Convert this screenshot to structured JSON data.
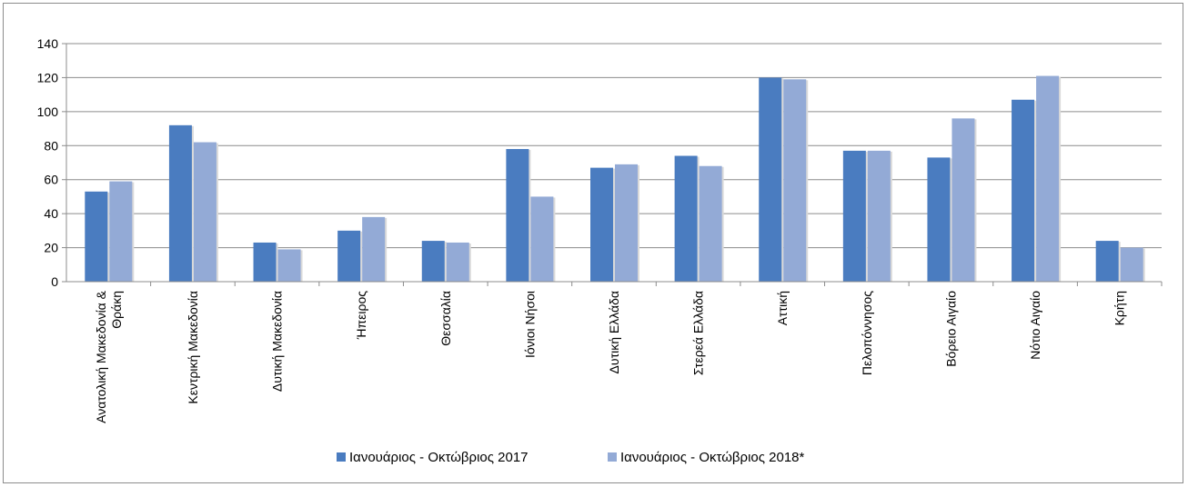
{
  "chart_data": {
    "type": "bar",
    "categories": [
      [
        "Ανατολική Μακεδονία &",
        "Θράκη"
      ],
      [
        "Κεντρική Μακεδονία"
      ],
      [
        "Δυτική Μακεδονία"
      ],
      [
        "Ήπειρος"
      ],
      [
        "Θεσσαλία"
      ],
      [
        "Ιόνιοι Νήσοι"
      ],
      [
        "Δυτική Ελλάδα"
      ],
      [
        "Στερεά Ελλάδα"
      ],
      [
        "Αττική"
      ],
      [
        "Πελοπόννησος"
      ],
      [
        "Βόρειο Αιγαίο"
      ],
      [
        "Νότιο Αιγαίο"
      ],
      [
        "Κρήτη"
      ]
    ],
    "series": [
      {
        "name": "Ιανουάριος - Οκτώβριος 2017",
        "color": "#4a7cc0",
        "values": [
          53,
          92,
          23,
          30,
          24,
          78,
          67,
          74,
          120,
          77,
          73,
          107,
          24
        ]
      },
      {
        "name": "Ιανουάριος - Οκτώβριος 2018*",
        "color": "#93aad6",
        "values": [
          59,
          82,
          19,
          38,
          23,
          50,
          69,
          68,
          119,
          77,
          96,
          121,
          20
        ]
      }
    ],
    "ylim": [
      0,
      140
    ],
    "yticks": [
      "0",
      "20",
      "40",
      "60",
      "80",
      "100",
      "120",
      "140"
    ],
    "grid": true,
    "legend": "bottom"
  }
}
